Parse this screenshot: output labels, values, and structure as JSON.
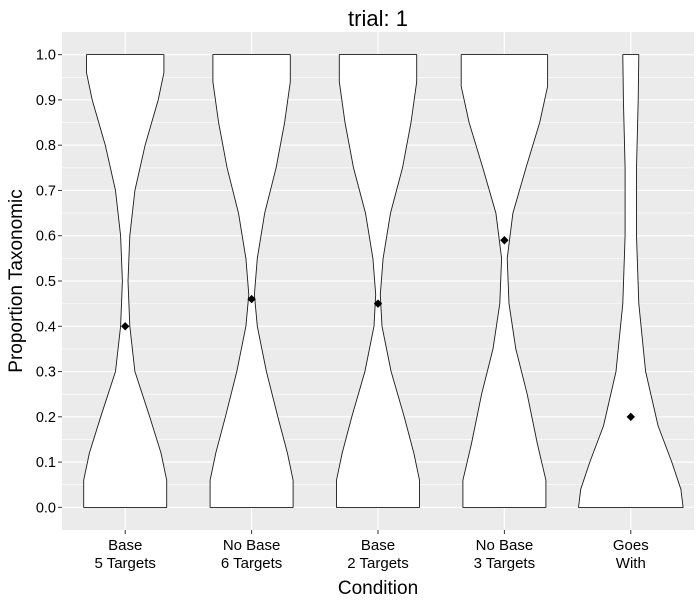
{
  "chart_data": {
    "type": "violin",
    "title": "trial: 1",
    "xlabel": "Condition",
    "ylabel": "Proportion Taxonomic",
    "ylim": [
      -0.05,
      1.05
    ],
    "yticks": [
      "0.0",
      "0.1",
      "0.2",
      "0.3",
      "0.4",
      "0.5",
      "0.6",
      "0.7",
      "0.8",
      "0.9",
      "1.0"
    ],
    "categories": [
      [
        "Base",
        "5 Targets"
      ],
      [
        "No Base",
        "6 Targets"
      ],
      [
        "Base",
        "2 Targets"
      ],
      [
        "No Base",
        "3 Targets"
      ],
      [
        "Goes",
        "With"
      ]
    ],
    "means": [
      0.4,
      0.46,
      0.45,
      0.59,
      0.2
    ],
    "violin_half_widths": [
      [
        [
          0,
          0.73
        ],
        [
          0.06,
          0.73
        ],
        [
          0.12,
          0.63
        ],
        [
          0.2,
          0.43
        ],
        [
          0.3,
          0.17
        ],
        [
          0.4,
          0.08
        ],
        [
          0.5,
          0.05
        ],
        [
          0.6,
          0.08
        ],
        [
          0.7,
          0.17
        ],
        [
          0.8,
          0.35
        ],
        [
          0.9,
          0.58
        ],
        [
          0.96,
          0.68
        ],
        [
          1.0,
          0.68
        ]
      ],
      [
        [
          0,
          0.73
        ],
        [
          0.06,
          0.73
        ],
        [
          0.12,
          0.63
        ],
        [
          0.2,
          0.46
        ],
        [
          0.3,
          0.26
        ],
        [
          0.4,
          0.1
        ],
        [
          0.47,
          0.05
        ],
        [
          0.55,
          0.1
        ],
        [
          0.65,
          0.23
        ],
        [
          0.75,
          0.43
        ],
        [
          0.85,
          0.58
        ],
        [
          0.94,
          0.68
        ],
        [
          1.0,
          0.68
        ]
      ],
      [
        [
          0,
          0.73
        ],
        [
          0.06,
          0.73
        ],
        [
          0.12,
          0.63
        ],
        [
          0.2,
          0.46
        ],
        [
          0.3,
          0.23
        ],
        [
          0.4,
          0.07
        ],
        [
          0.47,
          0.04
        ],
        [
          0.55,
          0.09
        ],
        [
          0.65,
          0.22
        ],
        [
          0.75,
          0.43
        ],
        [
          0.85,
          0.58
        ],
        [
          0.94,
          0.68
        ],
        [
          1.0,
          0.68
        ]
      ],
      [
        [
          0,
          0.73
        ],
        [
          0.06,
          0.73
        ],
        [
          0.14,
          0.58
        ],
        [
          0.25,
          0.4
        ],
        [
          0.35,
          0.2
        ],
        [
          0.45,
          0.08
        ],
        [
          0.55,
          0.05
        ],
        [
          0.65,
          0.15
        ],
        [
          0.75,
          0.38
        ],
        [
          0.85,
          0.62
        ],
        [
          0.93,
          0.76
        ],
        [
          1.0,
          0.76
        ]
      ],
      [
        [
          0,
          0.92
        ],
        [
          0.04,
          0.88
        ],
        [
          0.1,
          0.72
        ],
        [
          0.18,
          0.48
        ],
        [
          0.3,
          0.26
        ],
        [
          0.45,
          0.14
        ],
        [
          0.6,
          0.1
        ],
        [
          0.75,
          0.1
        ],
        [
          0.9,
          0.13
        ],
        [
          1.0,
          0.14
        ]
      ]
    ],
    "colors": {
      "panel": "#ebebeb",
      "grid": "#ffffff",
      "fill": "#ffffff",
      "stroke": "#1a1a1a",
      "point": "#000000"
    }
  }
}
